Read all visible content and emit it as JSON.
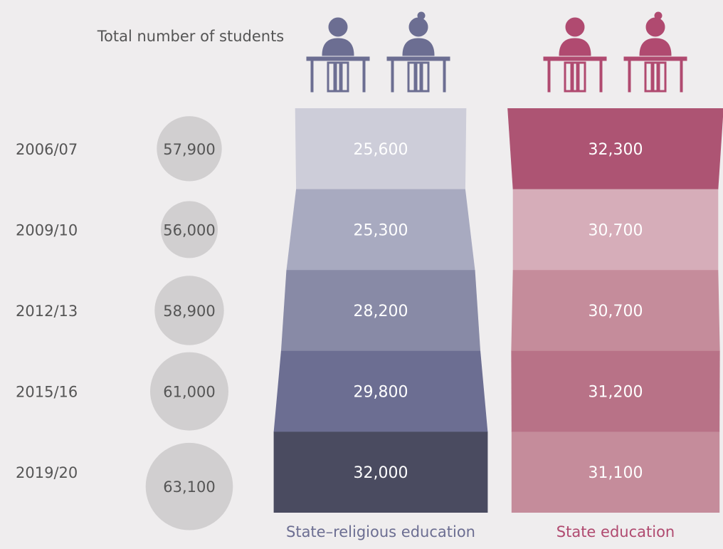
{
  "chart_data": {
    "type": "funnel",
    "header": "Total number of students",
    "categories": [
      "2006/07",
      "2009/10",
      "2012/13",
      "2015/16",
      "2019/20"
    ],
    "totals": [
      57900,
      56000,
      58900,
      61000,
      63100
    ],
    "totals_labels": [
      "57,900",
      "56,000",
      "58,900",
      "61,000",
      "63,100"
    ],
    "totals_color": "#d1cfd0",
    "series": [
      {
        "name": "State–religious education",
        "color": "#6c6e92",
        "colors": [
          "#cdcdd9",
          "#a8aac0",
          "#888aa6",
          "#6c6e92",
          "#4a4b60"
        ],
        "values": [
          25600,
          25300,
          28200,
          29800,
          32000
        ],
        "value_labels": [
          "25,600",
          "25,300",
          "28,200",
          "29,800",
          "32,000"
        ]
      },
      {
        "name": "State education",
        "color": "#b04a70",
        "colors": [
          "#ad5473",
          "#d6adb9",
          "#c58c9b",
          "#b87287",
          "#c58c9b"
        ],
        "values": [
          32300,
          30700,
          30700,
          31200,
          31100
        ],
        "value_labels": [
          "32,300",
          "30,700",
          "30,700",
          "31,200",
          "31,100"
        ]
      }
    ]
  }
}
